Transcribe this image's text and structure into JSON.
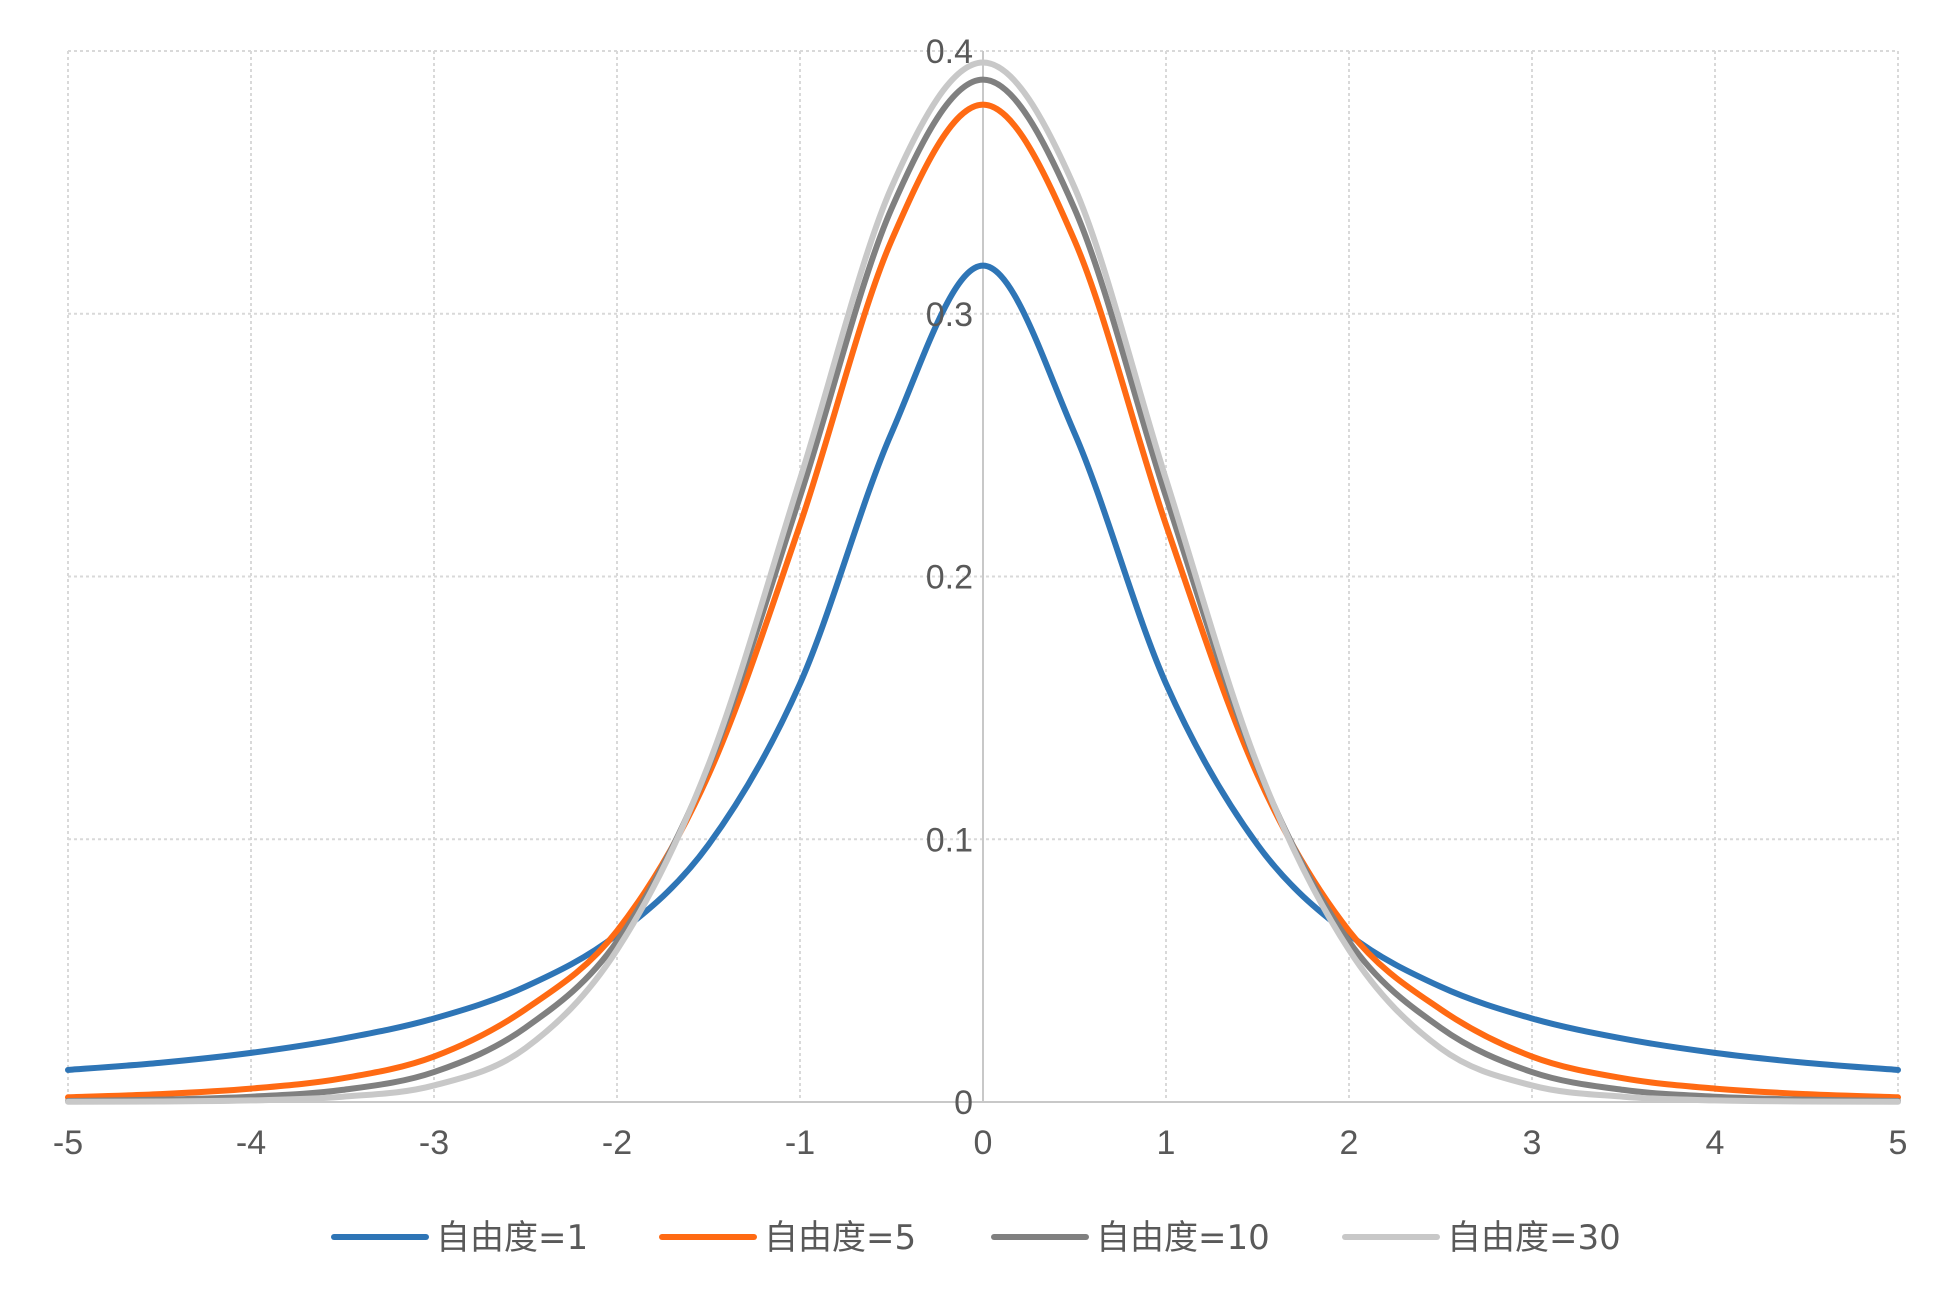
{
  "chart_data": {
    "type": "line",
    "title": "",
    "xlabel": "",
    "ylabel": "",
    "xlim": [
      -5,
      5
    ],
    "ylim": [
      0,
      0.4
    ],
    "grid": true,
    "legend_position": "bottom",
    "x_ticks": [
      "-5",
      "-4",
      "-3",
      "-2",
      "-1",
      "0",
      "1",
      "2",
      "3",
      "4",
      "5"
    ],
    "y_ticks": [
      "0",
      "0.1",
      "0.2",
      "0.3",
      "0.4"
    ],
    "x": [
      -5,
      -4.5,
      -4,
      -3.5,
      -3,
      -2.5,
      -2,
      -1.5,
      -1,
      -0.5,
      0,
      0.5,
      1,
      1.5,
      2,
      2.5,
      3,
      3.5,
      4,
      4.5,
      5
    ],
    "series": [
      {
        "name": "自由度=1",
        "color": "#2e75b6",
        "values": [
          0.0122,
          0.0149,
          0.0187,
          0.0241,
          0.0318,
          0.0439,
          0.0637,
          0.0979,
          0.1592,
          0.2546,
          0.3183,
          0.2546,
          0.1592,
          0.0979,
          0.0637,
          0.0439,
          0.0318,
          0.0241,
          0.0187,
          0.0149,
          0.0122
        ]
      },
      {
        "name": "自由度=5",
        "color": "#ff6a13",
        "values": [
          0.0018,
          0.003,
          0.0051,
          0.009,
          0.0173,
          0.0353,
          0.0651,
          0.1245,
          0.2197,
          0.3279,
          0.3796,
          0.3279,
          0.2197,
          0.1245,
          0.0651,
          0.0353,
          0.0173,
          0.009,
          0.0051,
          0.003,
          0.0018
        ]
      },
      {
        "name": "自由度=10",
        "color": "#808080",
        "values": [
          0.0004,
          0.0009,
          0.002,
          0.0046,
          0.0114,
          0.0283,
          0.0611,
          0.1274,
          0.2304,
          0.34,
          0.3891,
          0.34,
          0.2304,
          0.1274,
          0.0611,
          0.0283,
          0.0114,
          0.0046,
          0.002,
          0.0009,
          0.0004
        ]
      },
      {
        "name": "自由度=30",
        "color": "#c8c8c8",
        "values": [
          0.0001,
          0.0002,
          0.0006,
          0.002,
          0.0063,
          0.0205,
          0.0579,
          0.1283,
          0.237,
          0.3481,
          0.3956,
          0.3481,
          0.237,
          0.1283,
          0.0579,
          0.0205,
          0.0063,
          0.002,
          0.0006,
          0.0002,
          0.0001
        ]
      }
    ]
  }
}
